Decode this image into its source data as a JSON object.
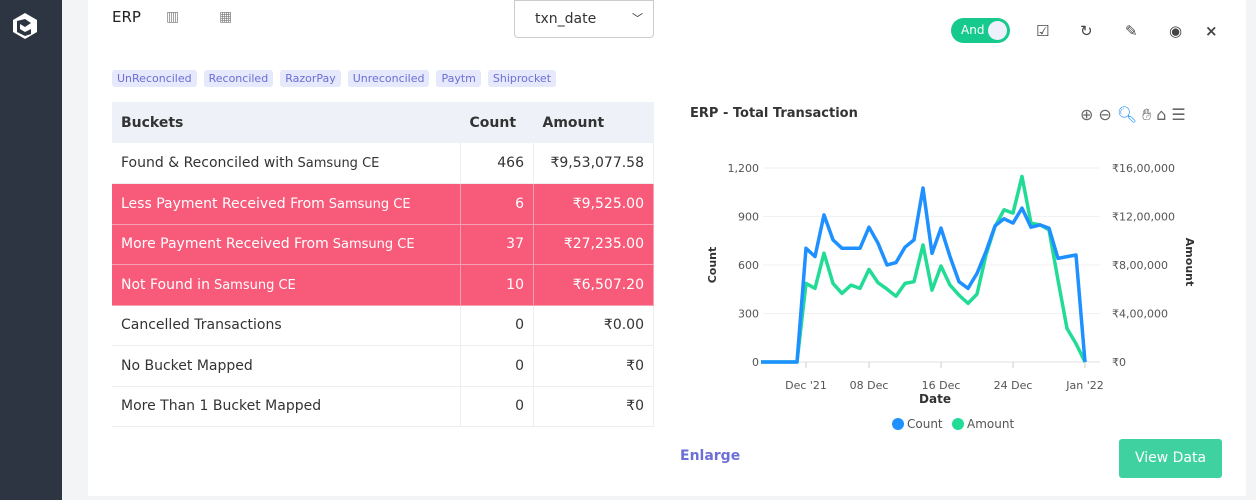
{
  "header": {
    "title": "ERP",
    "date_field": "txn_date",
    "toggle_label": "And"
  },
  "tags": [
    "UnReconciled",
    "Reconciled",
    "RazorPay",
    "Unreconciled",
    "Paytm",
    "Shiprocket"
  ],
  "table": {
    "headers": [
      "Buckets",
      "Count",
      "Amount"
    ],
    "rows": [
      {
        "label": "Found & Reconciled with",
        "entity": "Samsung CE",
        "count": "466",
        "amount": "₹9,53,077.58",
        "highlight": false
      },
      {
        "label": "Less Payment Received From",
        "entity": "Samsung CE",
        "count": "6",
        "amount": "₹9,525.00",
        "highlight": true
      },
      {
        "label": "More Payment Received From",
        "entity": "Samsung CE",
        "count": "37",
        "amount": "₹27,235.00",
        "highlight": true
      },
      {
        "label": "Not Found in",
        "entity": "Samsung CE",
        "count": "10",
        "amount": "₹6,507.20",
        "highlight": true
      },
      {
        "label": "Cancelled Transactions",
        "entity": "",
        "count": "0",
        "amount": "₹0.00",
        "highlight": false
      },
      {
        "label": "No Bucket Mapped",
        "entity": "",
        "count": "0",
        "amount": "₹0",
        "highlight": false
      },
      {
        "label": "More Than 1 Bucket Mapped",
        "entity": "",
        "count": "0",
        "amount": "₹0",
        "highlight": false
      }
    ]
  },
  "colors": {
    "highlight": "#f85a7a",
    "count": "#1e90ff",
    "amount": "#22dc96",
    "accent": "#16c98d"
  },
  "chart_data": {
    "type": "line",
    "title": "ERP - Total Transaction",
    "xlabel": "Date",
    "ylabel": "Count",
    "y2label": "Amount",
    "x": [
      "2021-11-26",
      "2021-11-27",
      "2021-11-28",
      "2021-11-29",
      "2021-11-30",
      "2021-12-01",
      "2021-12-02",
      "2021-12-03",
      "2021-12-04",
      "2021-12-05",
      "2021-12-06",
      "2021-12-07",
      "2021-12-08",
      "2021-12-09",
      "2021-12-10",
      "2021-12-11",
      "2021-12-12",
      "2021-12-13",
      "2021-12-14",
      "2021-12-15",
      "2021-12-16",
      "2021-12-17",
      "2021-12-18",
      "2021-12-19",
      "2021-12-20",
      "2021-12-21",
      "2021-12-22",
      "2021-12-23",
      "2021-12-24",
      "2021-12-25",
      "2021-12-26",
      "2021-12-27",
      "2021-12-28",
      "2021-12-29",
      "2021-12-30",
      "2021-12-31",
      "2022-01-01"
    ],
    "series": [
      {
        "name": "Count",
        "axis": "left",
        "values": [
          0,
          0,
          0,
          0,
          0,
          703,
          652,
          910,
          755,
          703,
          703,
          703,
          834,
          735,
          600,
          615,
          710,
          755,
          1076,
          672,
          828,
          652,
          497,
          455,
          548,
          683,
          842,
          886,
          859,
          952,
          834,
          848,
          828,
          641,
          652,
          662,
          0
        ]
      },
      {
        "name": "Amount",
        "axis": "right",
        "values": [
          0,
          0,
          0,
          0,
          0,
          648000,
          607000,
          897000,
          648000,
          566000,
          634000,
          607000,
          764000,
          654000,
          601000,
          543000,
          648000,
          662000,
          966000,
          593000,
          792000,
          634000,
          552000,
          483000,
          560000,
          883000,
          1117000,
          1255000,
          1228000,
          1531000,
          1145000,
          1131000,
          1090000,
          676000,
          276000,
          152000,
          0
        ]
      }
    ],
    "ylim": [
      0,
      1200
    ],
    "y2lim": [
      0,
      1600000
    ],
    "yticks": [
      "0",
      "300",
      "600",
      "900",
      "1,200"
    ],
    "y2ticks": [
      "₹0",
      "₹4,00,000",
      "₹8,00,000",
      "₹12,00,000",
      "₹16,00,000"
    ],
    "xticks": [
      "Dec '21",
      "08 Dec",
      "16 Dec",
      "24 Dec",
      "Jan '22"
    ],
    "legend": [
      "Count",
      "Amount"
    ],
    "legend_position": "bottom",
    "grid": true
  },
  "footer": {
    "enlarge": "Enlarge",
    "view_data": "View Data"
  }
}
